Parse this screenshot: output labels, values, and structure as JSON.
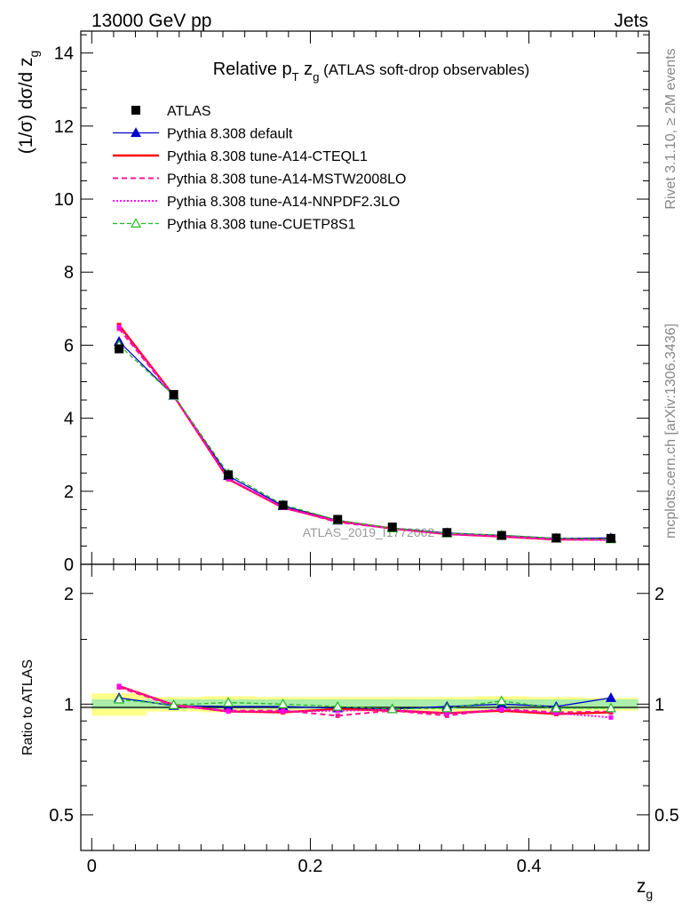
{
  "header": {
    "left": "13000 GeV pp",
    "right": "Jets"
  },
  "side_labels": {
    "rivet": "Rivet 3.1.10, ≥ 2M events",
    "mcplots": "mcplots.cern.ch [arXiv:1306.3436]"
  },
  "watermark": "ATLAS_2019_I1772062",
  "colors": {
    "data": "#000000",
    "default": "#0000cc",
    "cteql1": "#ff0000",
    "mstw": "#ff1493",
    "nnpdf": "#ff00ff",
    "cuetp": "#22bb22",
    "band_inner": "#aaeeaa",
    "band_outer": "#ffff88"
  },
  "chart_data": [
    {
      "type": "line",
      "title_prefix": "Relative p",
      "title_sub1": "T",
      "title_mid": " z",
      "title_sub2": "g",
      "title_suffix": " (ATLAS soft-drop observables)",
      "xlabel": "z",
      "xlabel_sub": "g",
      "ylabel": "(1/σ) dσ/d z",
      "ylabel_sub": "g",
      "xlim": [
        -0.01,
        0.51
      ],
      "ylim": [
        0,
        14.6
      ],
      "yticks": [
        0,
        2,
        4,
        6,
        8,
        10,
        12,
        14
      ],
      "legend_position": "top-left",
      "x": [
        0.025,
        0.075,
        0.125,
        0.175,
        0.225,
        0.275,
        0.325,
        0.375,
        0.425,
        0.475
      ],
      "series": [
        {
          "name": "ATLAS",
          "key": "data",
          "values": [
            5.9,
            4.65,
            2.45,
            1.62,
            1.23,
            1.02,
            0.87,
            0.79,
            0.72,
            0.71
          ]
        },
        {
          "name": "Pythia 8.308 default",
          "key": "default",
          "values": [
            6.1,
            4.62,
            2.42,
            1.6,
            1.2,
            0.99,
            0.86,
            0.79,
            0.71,
            0.72
          ]
        },
        {
          "name": "Pythia 8.308 tune-A14-CTEQL1",
          "key": "cteql1",
          "values": [
            6.55,
            4.62,
            2.33,
            1.55,
            1.18,
            0.98,
            0.83,
            0.76,
            0.68,
            0.68
          ]
        },
        {
          "name": "Pythia 8.308 tune-A14-MSTW2008LO",
          "key": "mstw",
          "values": [
            6.45,
            4.6,
            2.35,
            1.56,
            1.15,
            0.98,
            0.82,
            0.77,
            0.69,
            0.68
          ]
        },
        {
          "name": "Pythia 8.308 tune-A14-NNPDF2.3LO",
          "key": "nnpdf",
          "values": [
            6.5,
            4.62,
            2.34,
            1.55,
            1.18,
            0.98,
            0.83,
            0.76,
            0.68,
            0.66
          ]
        },
        {
          "name": "Pythia 8.308 tune-CUETP8S1",
          "key": "cuetp",
          "values": [
            6.0,
            4.63,
            2.48,
            1.63,
            1.21,
            0.99,
            0.85,
            0.8,
            0.71,
            0.69
          ]
        }
      ]
    },
    {
      "type": "line",
      "ylabel": "Ratio to ATLAS",
      "ylim": [
        0.4,
        2.4
      ],
      "log_scale": true,
      "yticks": [
        0.5,
        1,
        2
      ],
      "yticklabels": [
        "0.5",
        "1",
        "2"
      ],
      "xticks": [
        0,
        0.2,
        0.4
      ],
      "xticklabels": [
        "0",
        "0.2",
        "0.4"
      ],
      "x": [
        0.025,
        0.075,
        0.125,
        0.175,
        0.225,
        0.275,
        0.325,
        0.375,
        0.425,
        0.475
      ],
      "band_inner": [
        0.03,
        0.03,
        0.03,
        0.03,
        0.03,
        0.03,
        0.03,
        0.03,
        0.03,
        0.03
      ],
      "band_outer": [
        0.07,
        0.045,
        0.05,
        0.045,
        0.045,
        0.045,
        0.045,
        0.05,
        0.045,
        0.04
      ],
      "series": [
        {
          "name": "Pythia 8.308 default",
          "key": "default",
          "values": [
            1.04,
            0.99,
            0.985,
            0.985,
            0.975,
            0.97,
            0.985,
            1.0,
            0.985,
            1.04
          ]
        },
        {
          "name": "Pythia 8.308 tune-A14-CTEQL1",
          "key": "cteql1",
          "values": [
            1.12,
            0.995,
            0.955,
            0.95,
            0.97,
            0.96,
            0.945,
            0.96,
            0.94,
            0.95
          ]
        },
        {
          "name": "Pythia 8.308 tune-A14-MSTW2008LO",
          "key": "mstw",
          "values": [
            1.11,
            0.99,
            0.96,
            0.96,
            0.93,
            0.96,
            0.93,
            0.97,
            0.95,
            0.955
          ]
        },
        {
          "name": "Pythia 8.308 tune-A14-NNPDF2.3LO",
          "key": "nnpdf",
          "values": [
            1.12,
            0.995,
            0.955,
            0.955,
            0.96,
            0.965,
            0.945,
            0.965,
            0.945,
            0.92
          ]
        },
        {
          "name": "Pythia 8.308 tune-CUETP8S1",
          "key": "cuetp",
          "values": [
            1.03,
            0.995,
            1.01,
            1.0,
            0.985,
            0.97,
            0.975,
            1.02,
            0.975,
            0.975
          ]
        }
      ]
    }
  ]
}
